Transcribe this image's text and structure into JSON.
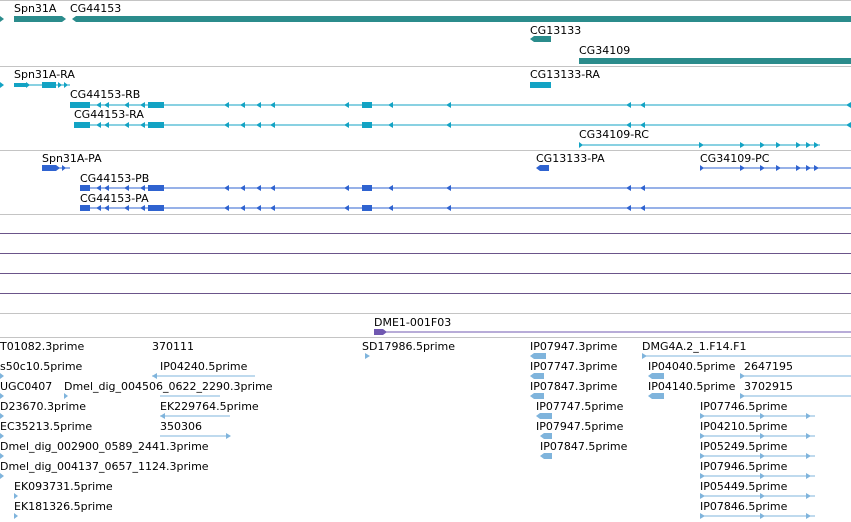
{
  "colors": {
    "gene": "#2b8c8c",
    "transcript": "#13a3c4",
    "protein": "#2f63d0",
    "empty_track_line": "#6b558a",
    "clone": "#7058b0",
    "est": "#7fb4dc",
    "divider": "#c4c4c4"
  },
  "genes": {
    "labels": [
      "Spn31A",
      "CG44153",
      "CG13133",
      "CG34109"
    ]
  },
  "transcripts": {
    "labels": [
      "Spn31A-RA",
      "CG44153-RB",
      "CG44153-RA",
      "CG13133-RA",
      "CG34109-RC"
    ]
  },
  "proteins": {
    "labels": [
      "Spn31A-PA",
      "CG44153-PB",
      "CG44153-PA",
      "CG13133-PA",
      "CG34109-PC"
    ]
  },
  "clones": {
    "labels": [
      "DME1-001F03"
    ]
  },
  "ests": {
    "labels": [
      "T01082.3prime",
      "370111",
      "SD17986.5prime",
      "IP07947.3prime",
      "DMG4A.2_1.F14.F1",
      "s50c10.5prime",
      "IP04240.5prime",
      "IP07747.3prime",
      "IP04040.5prime",
      "2647195",
      "UGC0407",
      "Dmel_dig_004506_0622_2290.3prime",
      "IP07847.3prime",
      "IP04140.5prime",
      "3702915",
      "D23670.3prime",
      "EK229764.5prime",
      "IP07747.5prime",
      "IP07746.5prime",
      "EC35213.5prime",
      "350306",
      "IP07947.5prime",
      "IP04210.5prime",
      "Dmel_dig_002900_0589_2441.3prime",
      "IP07847.5prime",
      "IP05249.5prime",
      "Dmel_dig_004137_0657_1124.3prime",
      "IP07946.5prime",
      "EK093731.5prime",
      "IP05449.5prime",
      "EK181326.5prime",
      "IP07846.5prime"
    ]
  }
}
